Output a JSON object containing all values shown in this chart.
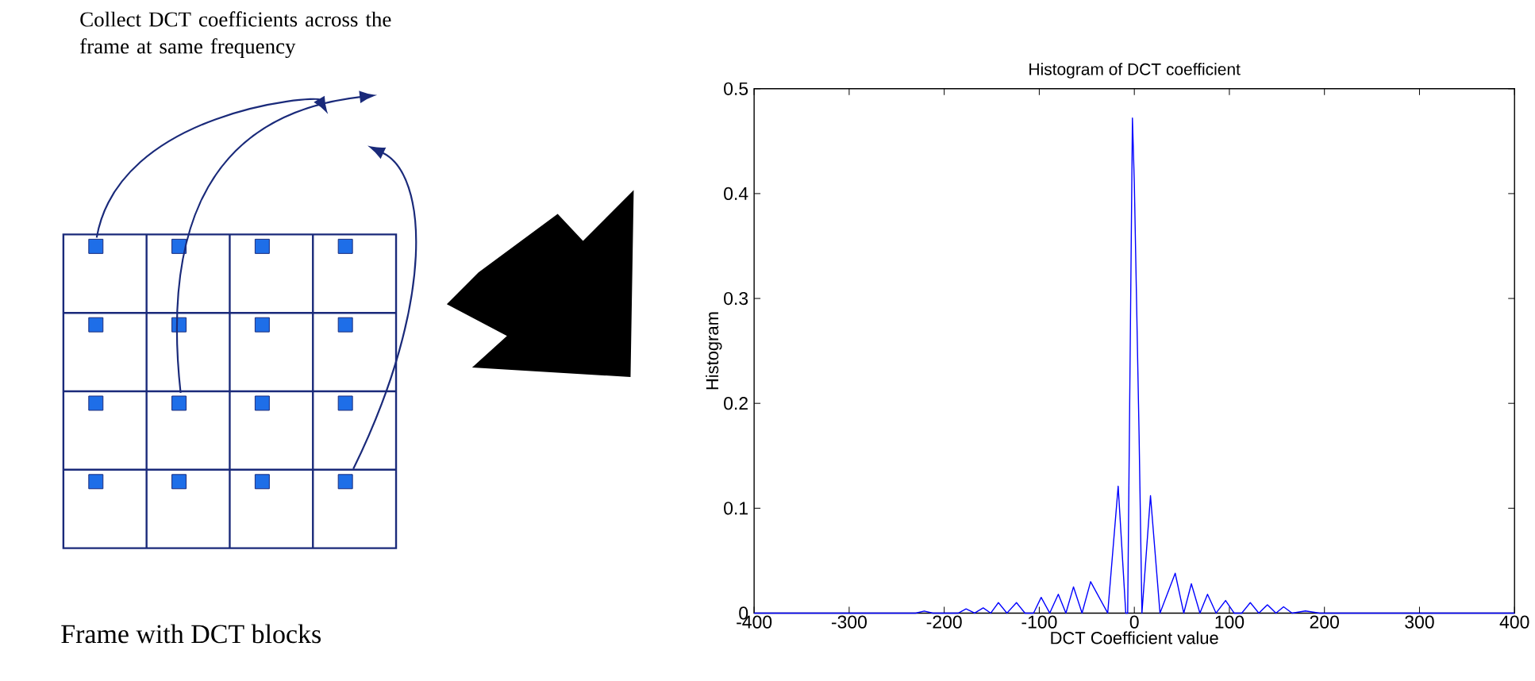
{
  "chart_data": {
    "type": "line",
    "title": "Histogram of DCT coefficient",
    "xlabel": "DCT Coefficient value",
    "ylabel": "Histogram",
    "annotations": [
      "Collect DCT coefficients across the frame at same frequency",
      "Frame with DCT blocks"
    ],
    "x": [
      -400,
      -230,
      -221,
      -212,
      -185,
      -177,
      -168,
      -159,
      -151,
      -143,
      -134,
      -124,
      -115,
      -106,
      -98,
      -89,
      -80,
      -72,
      -64,
      -55,
      -46,
      -28,
      -17,
      -9,
      -7,
      -2,
      0,
      5,
      8,
      17,
      27,
      43,
      52,
      60,
      69,
      77,
      86,
      96,
      105,
      113,
      122,
      131,
      140,
      149,
      157,
      166,
      180,
      195,
      400
    ],
    "series": [
      {
        "color": "#0000ff",
        "values": [
          0,
          0,
          0.002,
          0,
          0,
          0.004,
          0,
          0.005,
          0,
          0.01,
          0,
          0.01,
          0,
          0,
          0.015,
          0,
          0.018,
          0,
          0.025,
          0,
          0.03,
          0,
          0.121,
          0,
          0,
          0.472,
          0.41,
          0.17,
          0,
          0.112,
          0,
          0.038,
          0,
          0.028,
          0,
          0.018,
          0,
          0.012,
          0,
          0,
          0.01,
          0,
          0.008,
          0,
          0.006,
          0,
          0.002,
          0,
          0
        ]
      }
    ],
    "xlim": [
      -400,
      400
    ],
    "ylim": [
      0,
      0.5
    ],
    "xticks": [
      -400,
      -300,
      -200,
      -100,
      0,
      100,
      200,
      300,
      400
    ],
    "yticks": [
      0,
      0.1,
      0.2,
      0.3,
      0.4,
      0.5
    ],
    "grid": false,
    "marker": "none",
    "line_style": "solid"
  }
}
